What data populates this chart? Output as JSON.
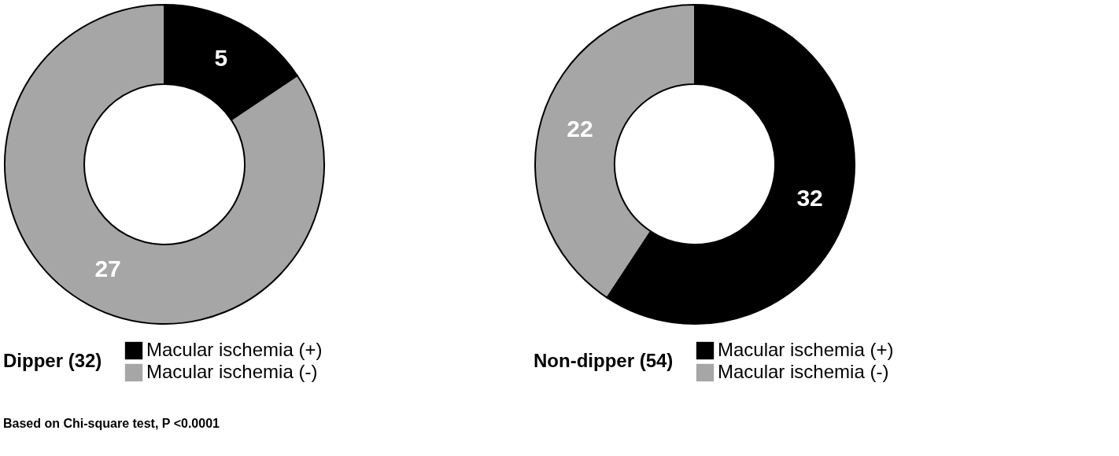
{
  "chart_data": [
    {
      "type": "donut",
      "title": "Dipper (32)",
      "categories": [
        "Macular ischemia (+)",
        "Macular ischemia (-)"
      ],
      "values": [
        5,
        27
      ],
      "colors": [
        "#000000",
        "#a6a6a6"
      ],
      "data_labels": true,
      "legend": "bottom",
      "annotations": [
        "Based on Chi-square test, P <0.0001"
      ]
    },
    {
      "type": "donut",
      "title": "Non-dipper (54)",
      "categories": [
        "Macular ischemia (+)",
        "Macular ischemia (-)"
      ],
      "values": [
        32,
        22
      ],
      "colors": [
        "#000000",
        "#a6a6a6"
      ],
      "data_labels": true,
      "legend": "bottom"
    }
  ]
}
